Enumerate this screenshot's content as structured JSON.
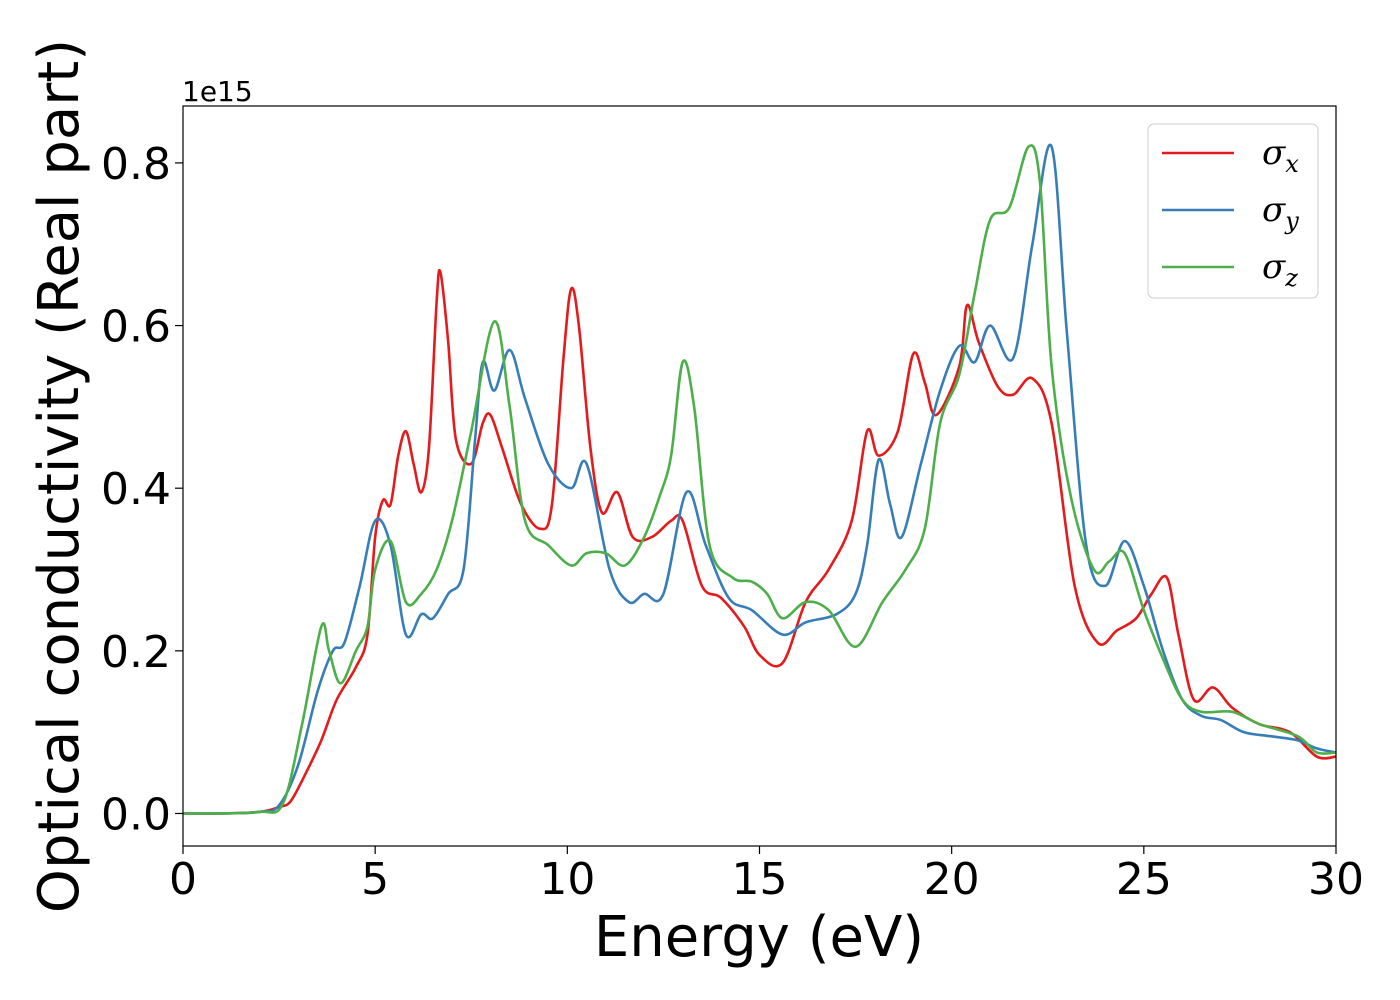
{
  "chart_data": {
    "type": "line",
    "xlabel": "Energy (eV)",
    "ylabel": "Optical conductivity (Real part)",
    "offset_text": "1e15",
    "xlim": [
      0,
      30
    ],
    "ylim": [
      -0.04,
      0.87
    ],
    "x_ticks": [
      0,
      5,
      10,
      15,
      20,
      25,
      30
    ],
    "x_tick_labels": [
      "0",
      "5",
      "10",
      "15",
      "20",
      "25",
      "30"
    ],
    "y_ticks": [
      0.0,
      0.2,
      0.4,
      0.6,
      0.8
    ],
    "y_tick_labels": [
      "0.0",
      "0.2",
      "0.4",
      "0.6",
      "0.8"
    ],
    "grid": false,
    "legend_position": "top-right",
    "series": [
      {
        "name": "σ",
        "subscript": "x",
        "color": "#e41a1c",
        "points": [
          [
            0,
            0
          ],
          [
            1,
            0
          ],
          [
            2,
            0.002
          ],
          [
            2.5,
            0.008
          ],
          [
            2.8,
            0.015
          ],
          [
            3.2,
            0.05
          ],
          [
            3.6,
            0.09
          ],
          [
            4,
            0.14
          ],
          [
            4.5,
            0.18
          ],
          [
            4.8,
            0.22
          ],
          [
            5,
            0.34
          ],
          [
            5.2,
            0.385
          ],
          [
            5.4,
            0.38
          ],
          [
            5.6,
            0.44
          ],
          [
            5.8,
            0.47
          ],
          [
            6,
            0.43
          ],
          [
            6.2,
            0.395
          ],
          [
            6.4,
            0.45
          ],
          [
            6.6,
            0.63
          ],
          [
            6.7,
            0.665
          ],
          [
            6.9,
            0.58
          ],
          [
            7.1,
            0.46
          ],
          [
            7.5,
            0.43
          ],
          [
            7.8,
            0.48
          ],
          [
            8,
            0.49
          ],
          [
            8.3,
            0.45
          ],
          [
            8.8,
            0.38
          ],
          [
            9.3,
            0.35
          ],
          [
            9.6,
            0.38
          ],
          [
            9.9,
            0.56
          ],
          [
            10.1,
            0.645
          ],
          [
            10.3,
            0.6
          ],
          [
            10.6,
            0.45
          ],
          [
            10.9,
            0.37
          ],
          [
            11.3,
            0.395
          ],
          [
            11.7,
            0.34
          ],
          [
            12.2,
            0.34
          ],
          [
            12.7,
            0.36
          ],
          [
            13,
            0.36
          ],
          [
            13.5,
            0.28
          ],
          [
            14,
            0.265
          ],
          [
            14.6,
            0.23
          ],
          [
            15,
            0.195
          ],
          [
            15.6,
            0.185
          ],
          [
            16.2,
            0.26
          ],
          [
            16.8,
            0.3
          ],
          [
            17.4,
            0.36
          ],
          [
            17.8,
            0.47
          ],
          [
            18.1,
            0.44
          ],
          [
            18.6,
            0.47
          ],
          [
            19,
            0.565
          ],
          [
            19.3,
            0.53
          ],
          [
            19.6,
            0.49
          ],
          [
            20.2,
            0.55
          ],
          [
            20.4,
            0.625
          ],
          [
            20.7,
            0.58
          ],
          [
            21.2,
            0.525
          ],
          [
            21.6,
            0.515
          ],
          [
            22.1,
            0.535
          ],
          [
            22.6,
            0.48
          ],
          [
            23.2,
            0.28
          ],
          [
            23.8,
            0.21
          ],
          [
            24.3,
            0.225
          ],
          [
            24.8,
            0.24
          ],
          [
            25.2,
            0.27
          ],
          [
            25.6,
            0.29
          ],
          [
            25.9,
            0.22
          ],
          [
            26.3,
            0.14
          ],
          [
            26.8,
            0.155
          ],
          [
            27.3,
            0.13
          ],
          [
            28,
            0.11
          ],
          [
            28.8,
            0.1
          ],
          [
            29.5,
            0.07
          ],
          [
            30,
            0.07
          ]
        ]
      },
      {
        "name": "σ",
        "subscript": "y",
        "color": "#377eb8",
        "points": [
          [
            0,
            0
          ],
          [
            1,
            0
          ],
          [
            2,
            0.002
          ],
          [
            2.5,
            0.01
          ],
          [
            3,
            0.06
          ],
          [
            3.5,
            0.15
          ],
          [
            3.9,
            0.2
          ],
          [
            4.2,
            0.21
          ],
          [
            4.6,
            0.28
          ],
          [
            5,
            0.36
          ],
          [
            5.4,
            0.33
          ],
          [
            5.8,
            0.22
          ],
          [
            6.2,
            0.245
          ],
          [
            6.5,
            0.24
          ],
          [
            6.9,
            0.27
          ],
          [
            7.3,
            0.3
          ],
          [
            7.6,
            0.46
          ],
          [
            7.8,
            0.555
          ],
          [
            8.1,
            0.52
          ],
          [
            8.5,
            0.57
          ],
          [
            8.9,
            0.51
          ],
          [
            9.5,
            0.43
          ],
          [
            10.1,
            0.4
          ],
          [
            10.5,
            0.43
          ],
          [
            11.1,
            0.3
          ],
          [
            11.6,
            0.26
          ],
          [
            12,
            0.27
          ],
          [
            12.5,
            0.27
          ],
          [
            13.1,
            0.395
          ],
          [
            13.6,
            0.33
          ],
          [
            14.2,
            0.265
          ],
          [
            14.8,
            0.25
          ],
          [
            15.6,
            0.22
          ],
          [
            16.2,
            0.235
          ],
          [
            17,
            0.245
          ],
          [
            17.5,
            0.27
          ],
          [
            17.8,
            0.33
          ],
          [
            18.1,
            0.435
          ],
          [
            18.4,
            0.38
          ],
          [
            18.7,
            0.34
          ],
          [
            19.2,
            0.43
          ],
          [
            19.7,
            0.52
          ],
          [
            20.2,
            0.575
          ],
          [
            20.6,
            0.555
          ],
          [
            21,
            0.6
          ],
          [
            21.6,
            0.56
          ],
          [
            22.1,
            0.7
          ],
          [
            22.6,
            0.82
          ],
          [
            23,
            0.59
          ],
          [
            23.5,
            0.33
          ],
          [
            24,
            0.28
          ],
          [
            24.5,
            0.335
          ],
          [
            25,
            0.28
          ],
          [
            25.5,
            0.2
          ],
          [
            26,
            0.14
          ],
          [
            26.5,
            0.12
          ],
          [
            27,
            0.115
          ],
          [
            27.6,
            0.1
          ],
          [
            28.3,
            0.095
          ],
          [
            29,
            0.09
          ],
          [
            29.5,
            0.08
          ],
          [
            30,
            0.075
          ]
        ]
      },
      {
        "name": "σ",
        "subscript": "z",
        "color": "#4daf4a",
        "points": [
          [
            0,
            0
          ],
          [
            1,
            0
          ],
          [
            2,
            0.002
          ],
          [
            2.6,
            0.012
          ],
          [
            3.1,
            0.11
          ],
          [
            3.6,
            0.23
          ],
          [
            3.8,
            0.2
          ],
          [
            4.1,
            0.16
          ],
          [
            4.5,
            0.2
          ],
          [
            4.8,
            0.23
          ],
          [
            5,
            0.3
          ],
          [
            5.4,
            0.335
          ],
          [
            5.8,
            0.26
          ],
          [
            6.2,
            0.27
          ],
          [
            6.6,
            0.3
          ],
          [
            7,
            0.36
          ],
          [
            7.5,
            0.47
          ],
          [
            8.1,
            0.605
          ],
          [
            8.5,
            0.5
          ],
          [
            8.9,
            0.36
          ],
          [
            9.5,
            0.33
          ],
          [
            10.1,
            0.305
          ],
          [
            10.5,
            0.32
          ],
          [
            11,
            0.32
          ],
          [
            11.5,
            0.305
          ],
          [
            12,
            0.34
          ],
          [
            12.4,
            0.39
          ],
          [
            12.7,
            0.44
          ],
          [
            13,
            0.555
          ],
          [
            13.3,
            0.5
          ],
          [
            13.7,
            0.33
          ],
          [
            14.3,
            0.29
          ],
          [
            14.8,
            0.285
          ],
          [
            15.2,
            0.27
          ],
          [
            15.6,
            0.24
          ],
          [
            16.2,
            0.26
          ],
          [
            16.8,
            0.25
          ],
          [
            17.5,
            0.205
          ],
          [
            18.2,
            0.26
          ],
          [
            18.8,
            0.3
          ],
          [
            19.3,
            0.35
          ],
          [
            19.7,
            0.48
          ],
          [
            20.2,
            0.54
          ],
          [
            20.6,
            0.64
          ],
          [
            21,
            0.73
          ],
          [
            21.5,
            0.745
          ],
          [
            22,
            0.82
          ],
          [
            22.3,
            0.775
          ],
          [
            22.6,
            0.55
          ],
          [
            23.1,
            0.39
          ],
          [
            23.7,
            0.3
          ],
          [
            24.1,
            0.31
          ],
          [
            24.5,
            0.32
          ],
          [
            25,
            0.25
          ],
          [
            25.5,
            0.19
          ],
          [
            26,
            0.14
          ],
          [
            26.5,
            0.125
          ],
          [
            27.3,
            0.125
          ],
          [
            28,
            0.11
          ],
          [
            29,
            0.095
          ],
          [
            29.5,
            0.075
          ],
          [
            30,
            0.075
          ]
        ]
      }
    ]
  }
}
